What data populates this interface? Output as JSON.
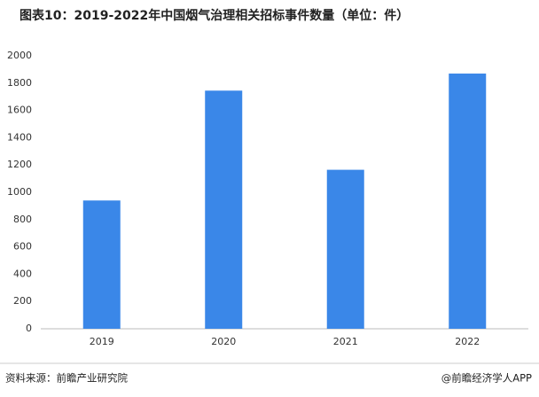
{
  "chart_data": {
    "type": "bar",
    "title": "图表10：2019-2022年中国烟气治理相关招标事件数量（单位：件）",
    "categories": [
      "2019",
      "2020",
      "2021",
      "2022"
    ],
    "values": [
      940,
      1745,
      1165,
      1870
    ],
    "color": "#3a87e8",
    "ylim": [
      0,
      2000
    ],
    "yticks": [
      0,
      200,
      400,
      600,
      800,
      1000,
      1200,
      1400,
      1600,
      1800,
      2000
    ],
    "grid": false,
    "source": "资料来源：前瞻产业研究院",
    "credit": "@前瞻经济学人APP"
  }
}
